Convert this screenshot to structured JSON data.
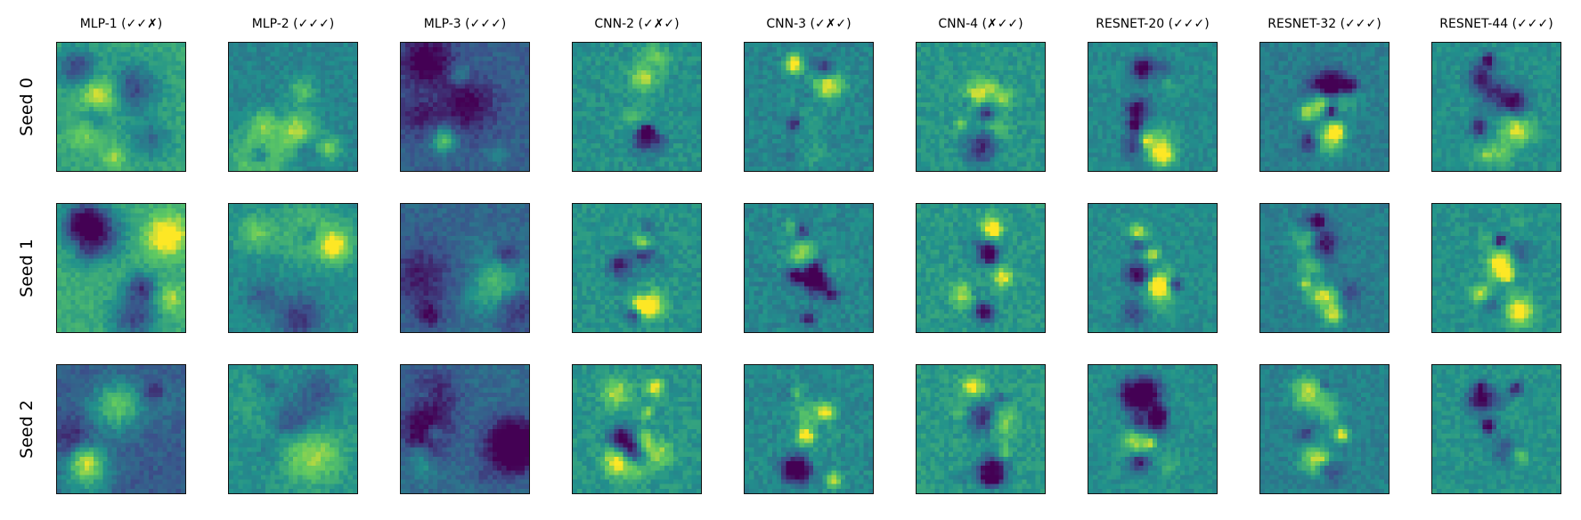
{
  "figure": {
    "columns": [
      {
        "title": "MLP-1 (✓✓✗)",
        "id": "mlp-1"
      },
      {
        "title": "MLP-2 (✓✓✓)",
        "id": "mlp-2"
      },
      {
        "title": "MLP-3 (✓✓✓)",
        "id": "mlp-3"
      },
      {
        "title": "CNN-2 (✓✗✓)",
        "id": "cnn-2"
      },
      {
        "title": "CNN-3 (✓✗✓)",
        "id": "cnn-3"
      },
      {
        "title": "CNN-4 (✗✓✓)",
        "id": "cnn-4"
      },
      {
        "title": "RESNET-20 (✓✓✓)",
        "id": "resnet-20"
      },
      {
        "title": "RESNET-32 (✓✓✓)",
        "id": "resnet-32"
      },
      {
        "title": "RESNET-44 (✓✓✓)",
        "id": "resnet-44"
      }
    ],
    "rows": [
      {
        "label": "Seed 0",
        "id": "seed-0"
      },
      {
        "label": "Seed 1",
        "id": "seed-1"
      },
      {
        "label": "Seed 2",
        "id": "seed-2"
      }
    ],
    "colormap": "viridis",
    "colormap_stops": [
      "#440154",
      "#3b528b",
      "#21918c",
      "#5ec962",
      "#fde725"
    ],
    "frame_color": "#111111",
    "panel_grid_cells": 28
  }
}
